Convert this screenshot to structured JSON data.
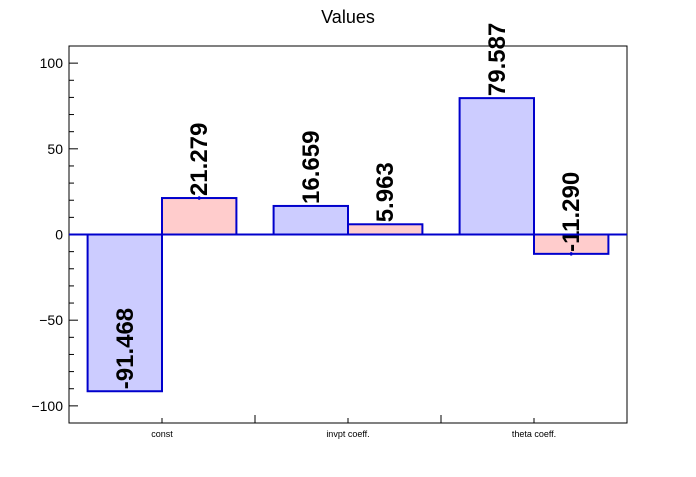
{
  "chart_data": {
    "type": "bar",
    "title": "Values",
    "xlabel": "",
    "ylabel": "",
    "categories": [
      "const",
      "invpt coeff.",
      "theta coeff."
    ],
    "series": [
      {
        "values": [
          -91.468,
          16.659,
          79.587
        ],
        "labels": [
          "-91.468",
          "16.659",
          "79.587"
        ],
        "fill": "#ccccff",
        "errors": [
          0,
          0,
          0
        ]
      },
      {
        "values": [
          21.279,
          5.963,
          -11.29
        ],
        "labels": [
          "21.279",
          "5.963",
          "-11.290"
        ],
        "fill": "#ffcccc",
        "errors": [
          1.0,
          0,
          1.0
        ]
      }
    ],
    "ylim": [
      -110,
      110
    ],
    "yticks": [
      -100,
      -50,
      0,
      50,
      100
    ],
    "ytick_labels": [
      "−100",
      "−50",
      "0",
      "50",
      "100"
    ],
    "grid": false,
    "legend": false,
    "bar_edge_color": "#0000cc",
    "zero_line_color": "#0000cc"
  }
}
